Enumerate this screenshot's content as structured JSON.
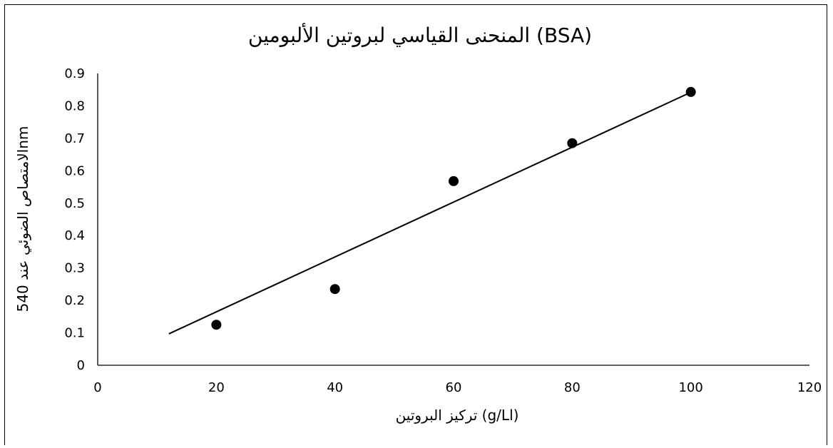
{
  "chart_data": {
    "type": "scatter",
    "title": "المنحنى القياسي لبروتين الألبومين (BSA)",
    "xlabel": "تركيز البروتين (g/Ll)",
    "ylabel": "الامتصاص الضوئي عند 540nm",
    "xlim": [
      0,
      120
    ],
    "ylim": [
      0,
      0.9
    ],
    "x_ticks": [
      0,
      20,
      40,
      60,
      80,
      100,
      120
    ],
    "y_ticks": [
      0,
      0.1,
      0.2,
      0.3,
      0.4,
      0.5,
      0.6,
      0.7,
      0.8,
      0.9
    ],
    "grid": false,
    "series": [
      {
        "x": [
          20,
          40,
          60,
          80,
          100
        ],
        "y": [
          0.125,
          0.235,
          0.568,
          0.685,
          0.843
        ],
        "color": "#000000"
      }
    ],
    "trendline": {
      "type": "linear",
      "x": [
        12,
        100
      ],
      "y": [
        0.097,
        0.842
      ],
      "color": "#000000"
    }
  }
}
